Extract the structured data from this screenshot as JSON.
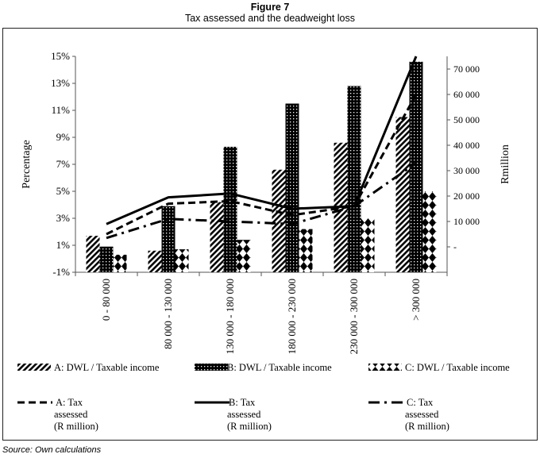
{
  "figure": {
    "label": "Figure 7",
    "title": "Tax assessed and the deadweight loss",
    "source": "Source: Own calculations"
  },
  "chart_data": {
    "type": "bar",
    "title": "Tax assessed and the deadweight loss",
    "categories": [
      "0 - 80 000",
      "80 000 - 130 000",
      "130 000 - 180 000",
      "180 000 - 230 000",
      "230 000 - 300 000",
      "> 300 000"
    ],
    "ylabel": "Percentage",
    "y2label": "Rmillion",
    "ylim": [
      -1,
      15
    ],
    "y2lim": [
      -10000,
      75000
    ],
    "yticks": [
      "15%",
      "13%",
      "11%",
      "9%",
      "7%",
      "5%",
      "3%",
      "1%",
      "-1%"
    ],
    "y2ticks": [
      "70 000",
      "60 000",
      "50 000",
      "40 000",
      "30 000",
      "20 000",
      "10 000",
      "-"
    ],
    "bar_series": [
      {
        "name": "A: DWL / Taxable income",
        "pattern": "diagonal",
        "values": [
          1.7,
          0.6,
          4.2,
          6.6,
          8.6,
          10.5
        ]
      },
      {
        "name": "B: DWL / Taxable income",
        "pattern": "dense",
        "values": [
          0.9,
          3.9,
          8.3,
          11.5,
          12.8,
          14.6
        ]
      },
      {
        "name": "C: DWL / Taxable income",
        "pattern": "diamond",
        "values": [
          0.3,
          0.7,
          1.4,
          2.2,
          3.0,
          5.0
        ]
      }
    ],
    "line_series": [
      {
        "name": "A: Tax\nassessed\n(R million)",
        "style": "dash",
        "values": [
          5000,
          17000,
          18000,
          12500,
          16000,
          60000
        ]
      },
      {
        "name": "B: Tax\nassessed\n(R million)",
        "style": "solid",
        "values": [
          9000,
          19500,
          21000,
          15000,
          16000,
          75000
        ]
      },
      {
        "name": "C: Tax\nassessed\n(R million)",
        "style": "dashdot",
        "values": [
          3500,
          11000,
          10000,
          9000,
          16000,
          33000
        ]
      }
    ],
    "legend_position": "bottom",
    "grid": false
  },
  "colors": {
    "ink": "#000000",
    "pattern_light": "#ffffff"
  }
}
